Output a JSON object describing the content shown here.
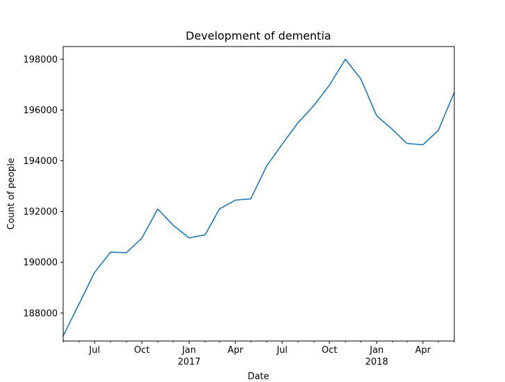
{
  "chart_data": {
    "type": "line",
    "title": "Development of dementia",
    "xlabel": "Date",
    "ylabel": "Count of people",
    "grid": false,
    "legend": "none",
    "xlim": [
      "2016-05-01",
      "2018-06-01"
    ],
    "ylim": [
      186900,
      198500
    ],
    "x_major_ticks": [
      {
        "date": "2016-07-01",
        "label": "Jul",
        "sublabel": ""
      },
      {
        "date": "2016-10-01",
        "label": "Oct",
        "sublabel": ""
      },
      {
        "date": "2017-01-01",
        "label": "Jan",
        "sublabel": "2017"
      },
      {
        "date": "2017-04-01",
        "label": "Apr",
        "sublabel": ""
      },
      {
        "date": "2017-07-01",
        "label": "Jul",
        "sublabel": ""
      },
      {
        "date": "2017-10-01",
        "label": "Oct",
        "sublabel": ""
      },
      {
        "date": "2018-01-01",
        "label": "Jan",
        "sublabel": "2018"
      },
      {
        "date": "2018-04-01",
        "label": "Apr",
        "sublabel": ""
      }
    ],
    "y_ticks": [
      188000,
      190000,
      192000,
      194000,
      196000,
      198000
    ],
    "series": [
      {
        "color": "#1f77b4",
        "x": [
          "2016-05-01",
          "2016-06-01",
          "2016-07-01",
          "2016-08-01",
          "2016-09-01",
          "2016-10-01",
          "2016-11-01",
          "2016-12-01",
          "2017-01-01",
          "2017-02-01",
          "2017-03-01",
          "2017-04-01",
          "2017-05-01",
          "2017-06-01",
          "2017-07-01",
          "2017-08-01",
          "2017-09-01",
          "2017-10-01",
          "2017-11-01",
          "2017-12-01",
          "2018-01-01",
          "2018-02-01",
          "2018-03-01",
          "2018-04-01",
          "2018-05-01",
          "2018-06-01"
        ],
        "values": [
          187100,
          188370,
          189600,
          190400,
          190380,
          190950,
          192100,
          191460,
          190960,
          191080,
          192100,
          192450,
          192500,
          193800,
          194650,
          195500,
          196180,
          196980,
          198000,
          197230,
          195770,
          195230,
          194680,
          194630,
          195200,
          196700
        ]
      }
    ]
  }
}
